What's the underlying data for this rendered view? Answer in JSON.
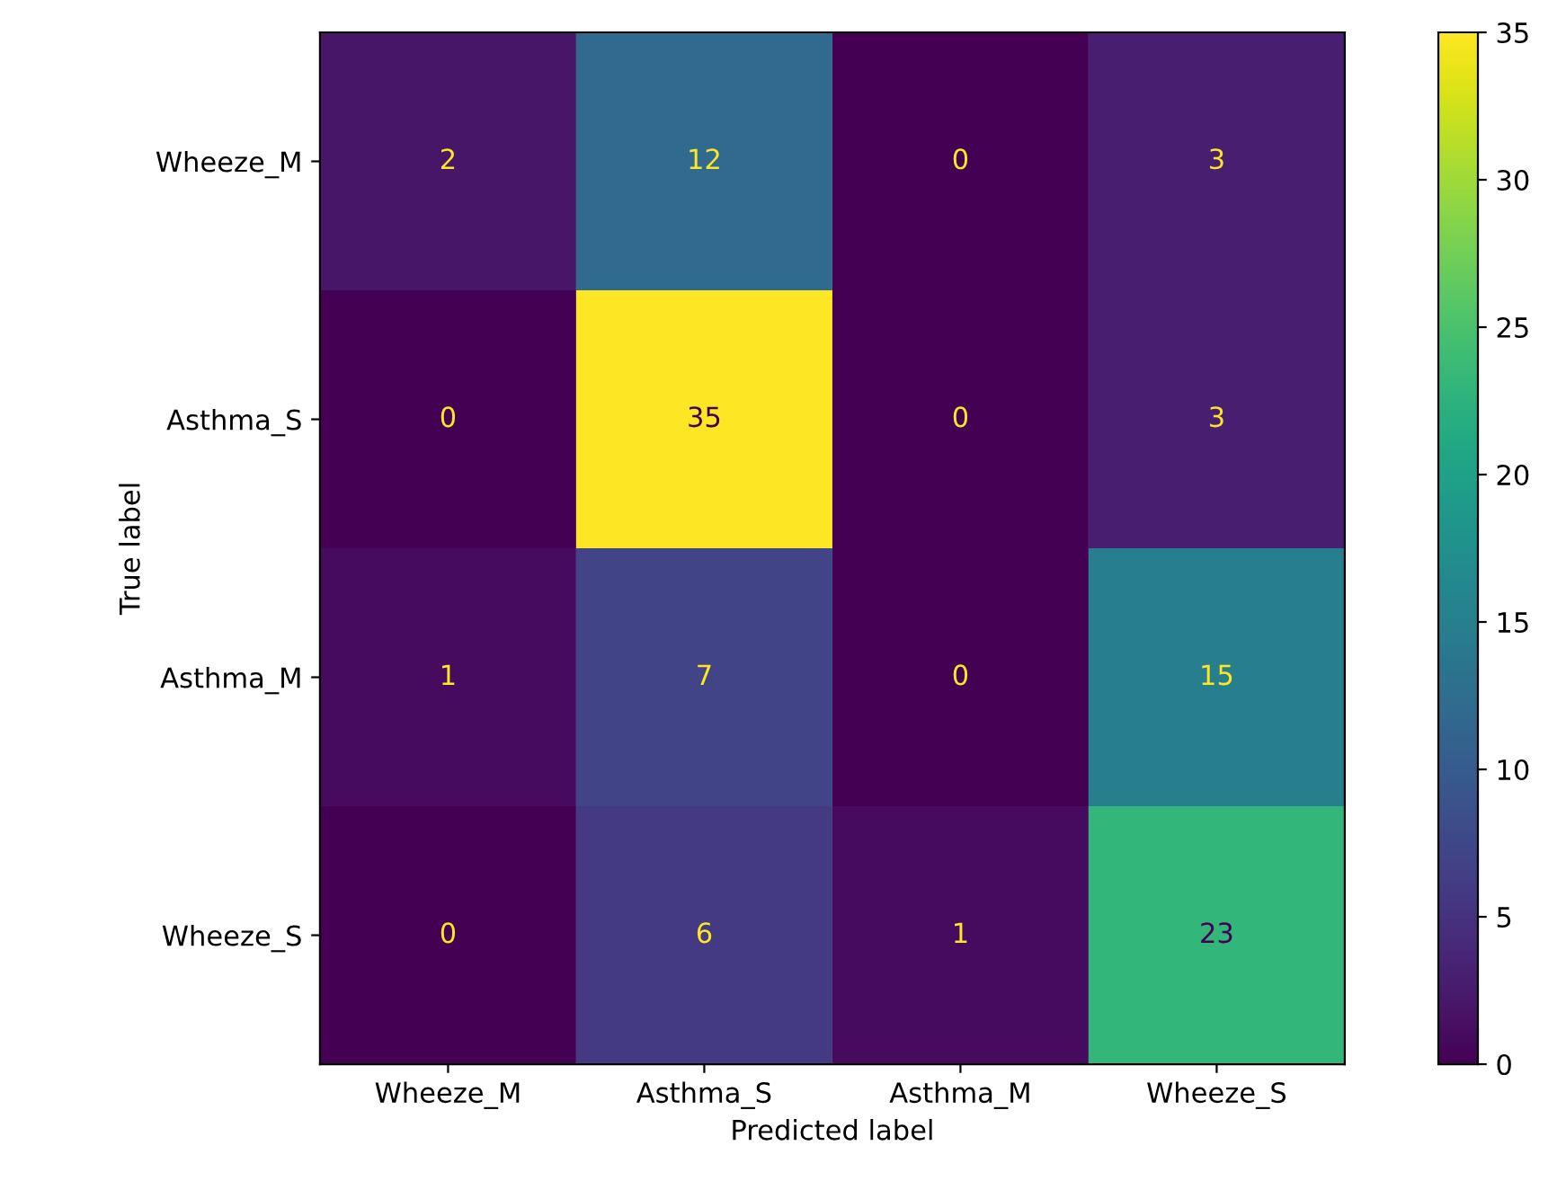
{
  "chart_data": {
    "type": "heatmap",
    "xlabel": "Predicted label",
    "ylabel": "True label",
    "categories": [
      "Wheeze_M",
      "Asthma_S",
      "Asthma_M",
      "Wheeze_S"
    ],
    "y_categories": [
      "Wheeze_M",
      "Asthma_S",
      "Asthma_M",
      "Wheeze_S"
    ],
    "cells": [
      [
        2,
        12,
        0,
        3
      ],
      [
        0,
        35,
        0,
        3
      ],
      [
        1,
        7,
        0,
        15
      ],
      [
        0,
        6,
        1,
        23
      ]
    ],
    "clim": [
      0,
      35
    ],
    "cticks": [
      0,
      5,
      10,
      15,
      20,
      25,
      30,
      35
    ],
    "data_labels": true,
    "grid": false
  }
}
